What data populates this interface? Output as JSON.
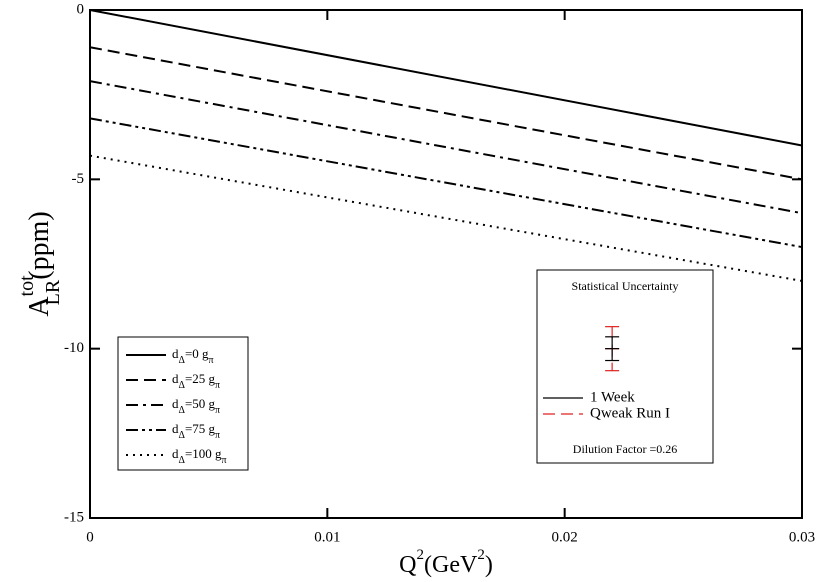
{
  "chart_data": {
    "type": "line",
    "xlabel": {
      "base": "Q",
      "sup": "2",
      "unit": "(GeV",
      "unit_sup": "2",
      "close": ")"
    },
    "ylabel": {
      "base": "A",
      "sup": "tot",
      "sub": "LR",
      "unit": "(ppm)"
    },
    "x": [
      0,
      0.03
    ],
    "xlim": [
      0,
      0.03
    ],
    "ylim": [
      -15,
      0
    ],
    "xticks": [
      0,
      0.01,
      0.02,
      0.03
    ],
    "yticks": [
      0,
      -5,
      -10,
      -15
    ],
    "legend": "bottom-left",
    "series": [
      {
        "name": "dΔ=0 gπ",
        "color": "#000000",
        "style": "solid",
        "values": [
          0,
          -4.0
        ]
      },
      {
        "name": "dΔ=25 gπ",
        "color": "#000000",
        "style": "dashed",
        "values": [
          -1.1,
          -5.0
        ]
      },
      {
        "name": "dΔ=50 gπ",
        "color": "#000000",
        "style": "dashdot",
        "values": [
          -2.1,
          -6.0
        ]
      },
      {
        "name": "dΔ=75 gπ",
        "color": "#000000",
        "style": "dashdotdot",
        "values": [
          -3.2,
          -7.0
        ]
      },
      {
        "name": "dΔ=100 gπ",
        "color": "#000000",
        "style": "dotted",
        "values": [
          -4.3,
          -8.0
        ]
      }
    ],
    "inset": {
      "title": "Statistical Uncertainty",
      "x": 0.022,
      "entries": [
        {
          "name": "1 Week",
          "color": "#000000",
          "style": "solid",
          "value": -10.0,
          "error": 0.35
        },
        {
          "name": "Qweak Run I",
          "color": "#e02020",
          "style": "dashed",
          "value": -10.0,
          "error": 0.65
        }
      ],
      "note": "Dilution Factor =0.26"
    }
  }
}
